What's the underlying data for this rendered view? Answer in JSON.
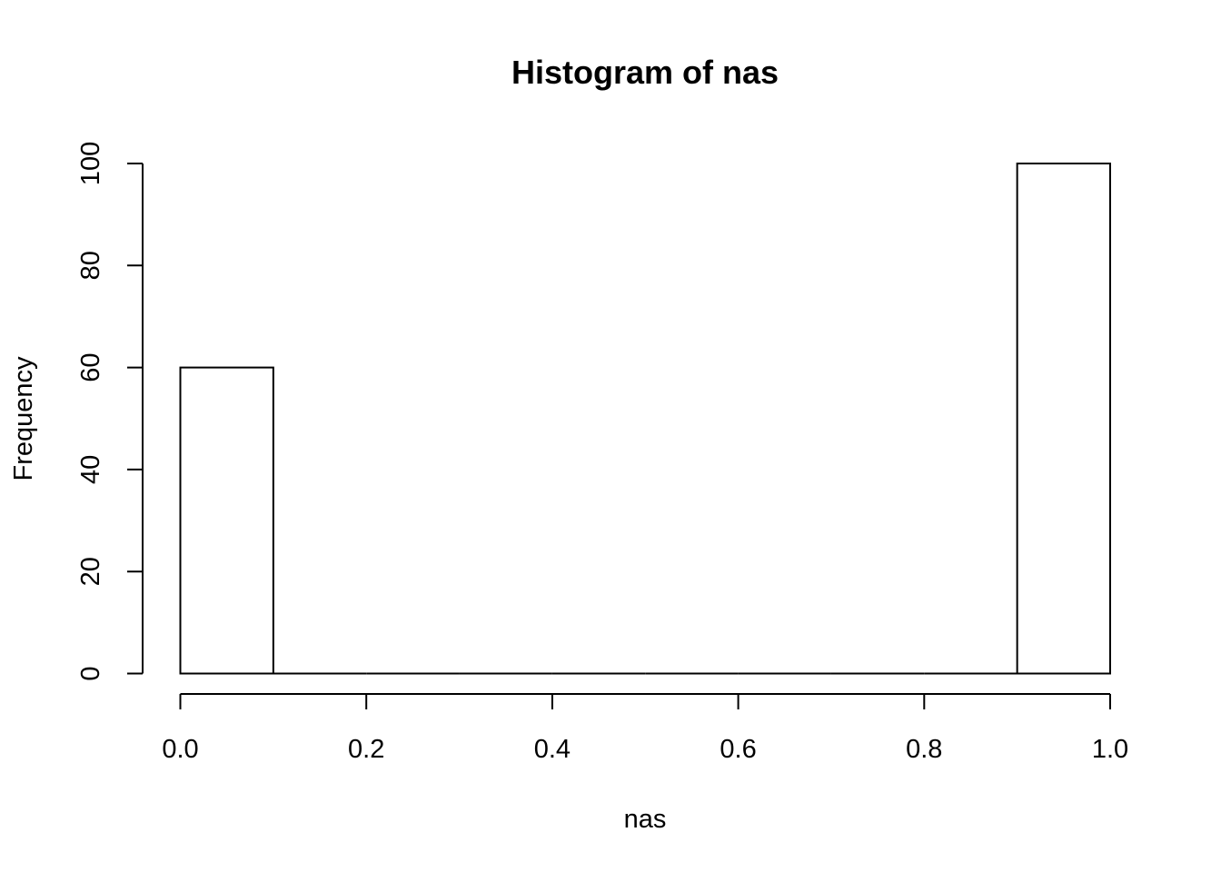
{
  "chart_data": {
    "type": "bar",
    "title": "Histogram of nas",
    "xlabel": "nas",
    "ylabel": "Frequency",
    "bin_edges": [
      0.0,
      0.1,
      0.2,
      0.3,
      0.4,
      0.5,
      0.6,
      0.7,
      0.8,
      0.9,
      1.0
    ],
    "values": [
      60,
      0,
      0,
      0,
      0,
      0,
      0,
      0,
      0,
      100
    ],
    "xlim": [
      0.0,
      1.0
    ],
    "ylim": [
      0,
      100
    ],
    "x_ticks": [
      0.0,
      0.2,
      0.4,
      0.6,
      0.8,
      1.0
    ],
    "x_tick_labels": [
      "0.0",
      "0.2",
      "0.4",
      "0.6",
      "0.8",
      "1.0"
    ],
    "y_ticks": [
      0,
      20,
      40,
      60,
      80,
      100
    ],
    "y_tick_labels": [
      "0",
      "20",
      "40",
      "60",
      "80",
      "100"
    ],
    "grid": false,
    "bar_fill": "#ffffff",
    "bar_stroke": "#000000"
  }
}
